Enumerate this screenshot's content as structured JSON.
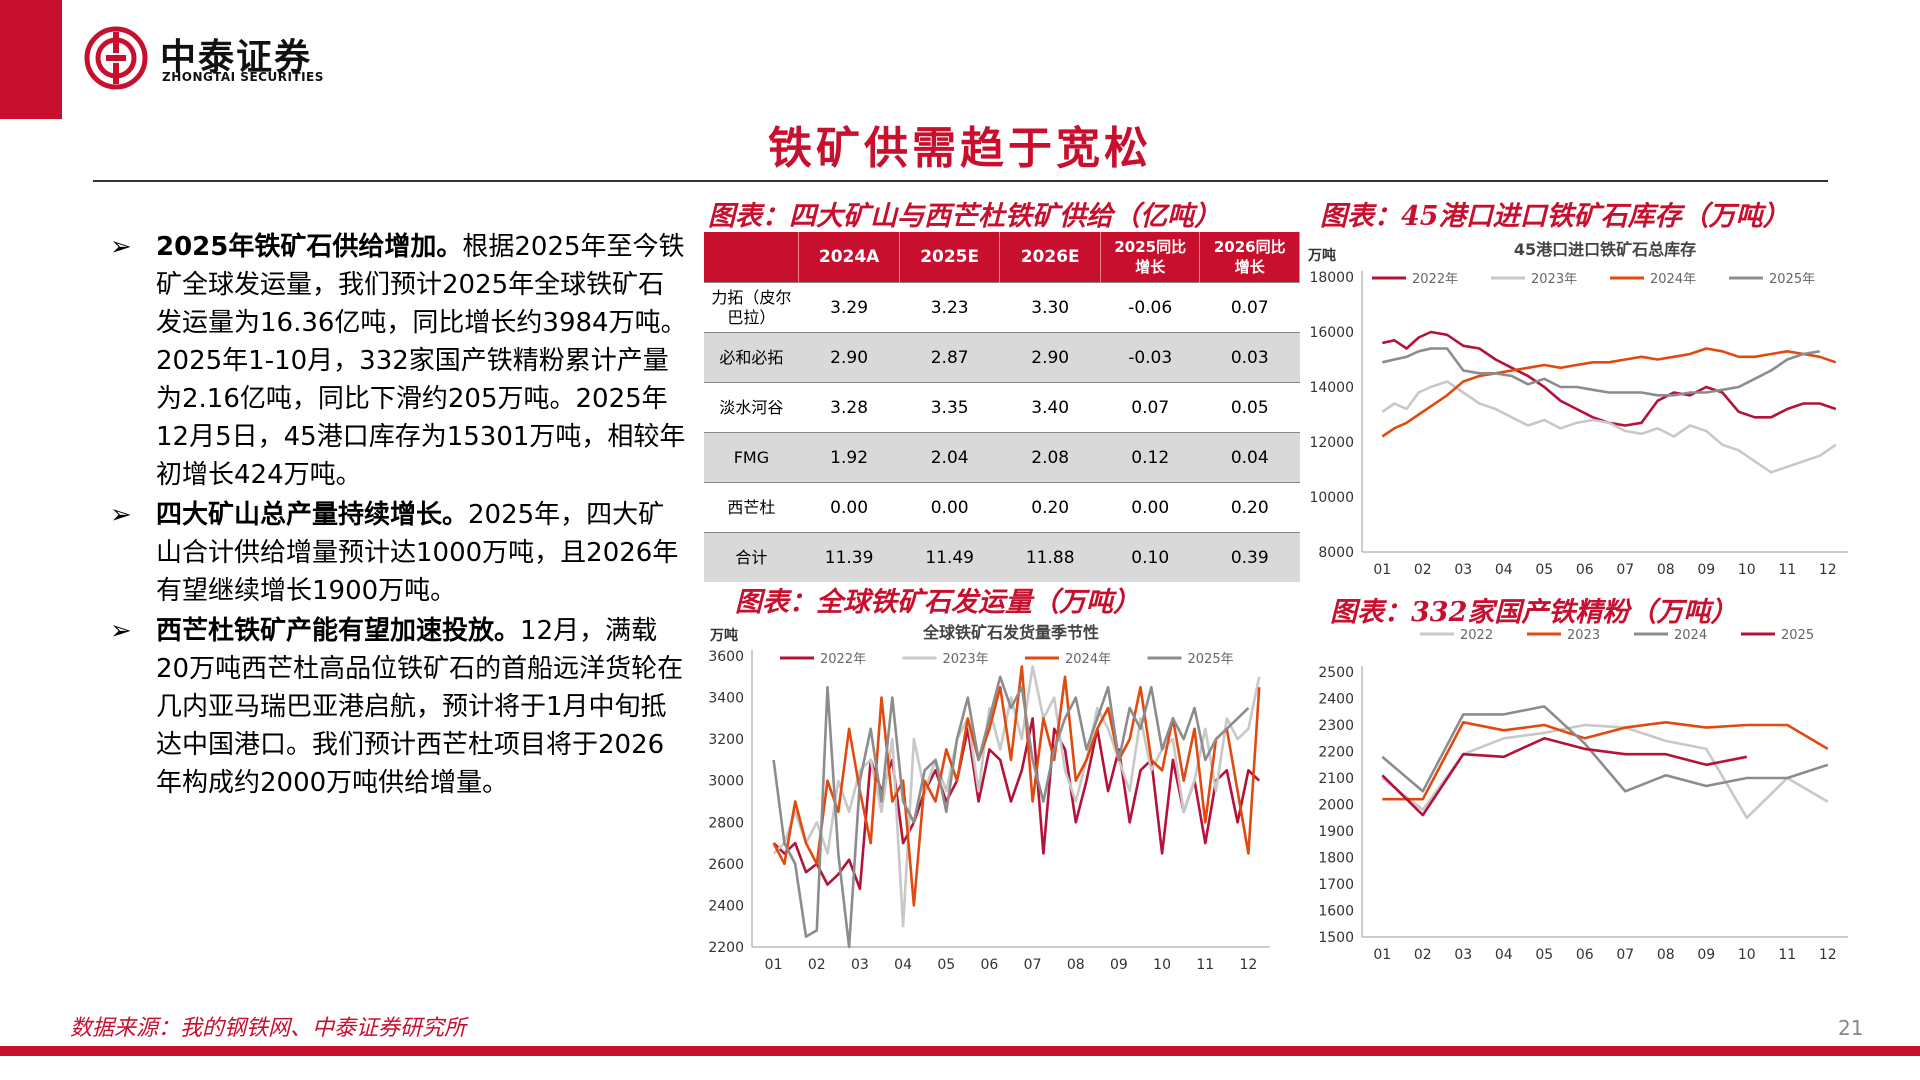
{
  "brand": {
    "name_cn": "中泰证券",
    "name_en": "ZHONGTAI SECURITIES"
  },
  "page_title": "铁矿供需趋于宽松",
  "bullets": [
    {
      "heading": "2025年铁矿石供给增加。",
      "text": "根据2025年至今铁矿全球发运量，我们预计2025年全球铁矿石发运量为16.36亿吨，同比增长约3984万吨。2025年1-10月，332家国产铁精粉累计产量为2.16亿吨，同比下滑约205万吨。2025年12月5日，45港口库存为15301万吨，相较年初增长424万吨。"
    },
    {
      "heading": "四大矿山总产量持续增长。",
      "text": "2025年，四大矿山合计供给增量预计达1000万吨，且2026年有望继续增长1900万吨。"
    },
    {
      "heading": "西芒杜铁矿产能有望加速投放。",
      "text": "12月，满载20万吨西芒杜高品位铁矿石的首船远洋货轮在几内亚马瑞巴亚港启航，预计将于1月中旬抵达中国港口。我们预计西芒杜项目将于2026年构成约2000万吨供给增量。"
    }
  ],
  "captions": {
    "table": "图表：四大矿山与西芒杜铁矿供给（亿吨）",
    "stock": "图表：45港口进口铁矿石库存（万吨）",
    "shipment": "图表：全球铁矿石发运量（万吨）",
    "domestic": "图表：332家国产铁精粉（万吨）"
  },
  "table": {
    "headers": [
      "",
      "2024A",
      "2025E",
      "2026E",
      "2025同比\n增长",
      "2026同比\n增长"
    ],
    "rows": [
      [
        "力拓（皮尔巴拉）",
        "3.29",
        "3.23",
        "3.30",
        "-0.06",
        "0.07"
      ],
      [
        "必和必拓",
        "2.90",
        "2.87",
        "2.90",
        "-0.03",
        "0.03"
      ],
      [
        "淡水河谷",
        "3.28",
        "3.35",
        "3.40",
        "0.07",
        "0.05"
      ],
      [
        "FMG",
        "1.92",
        "2.04",
        "2.08",
        "0.12",
        "0.04"
      ],
      [
        "西芒杜",
        "0.00",
        "0.00",
        "0.20",
        "0.00",
        "0.20"
      ],
      [
        "合计",
        "11.39",
        "11.49",
        "11.88",
        "0.10",
        "0.39"
      ]
    ]
  },
  "footer": {
    "source": "数据来源：我的钢铁网、中泰证券研究所",
    "page": "21"
  },
  "colors": {
    "accent": "#c8102e",
    "s2022": "#b5123a",
    "s2023": "#c8c8c8",
    "s2024": "#e04a10",
    "s2025": "#8c8c8c"
  },
  "chart_data": [
    {
      "type": "line",
      "title": "45港口进口铁矿石总库存",
      "ylabel": "万吨",
      "ylim": [
        8000,
        18000
      ],
      "yticks": [
        8000,
        10000,
        12000,
        14000,
        16000,
        18000
      ],
      "xticks": [
        "01",
        "02",
        "03",
        "04",
        "05",
        "06",
        "07",
        "08",
        "09",
        "10",
        "11",
        "12"
      ],
      "grid": false,
      "legend": "top",
      "series": [
        {
          "name": "2022年",
          "color": "#b5123a",
          "x": [
            1,
            1.3,
            1.6,
            1.9,
            2.2,
            2.6,
            3,
            3.4,
            3.8,
            4.2,
            4.6,
            5,
            5.4,
            5.8,
            6.2,
            6.6,
            7,
            7.4,
            7.8,
            8.2,
            8.6,
            9,
            9.4,
            9.8,
            10.2,
            10.6,
            11,
            11.4,
            11.8,
            12.2
          ],
          "values": [
            15600,
            15700,
            15400,
            15800,
            16000,
            15900,
            15500,
            15400,
            15000,
            14700,
            14400,
            14000,
            13500,
            13200,
            12900,
            12700,
            12600,
            12700,
            13500,
            13800,
            13700,
            14000,
            13800,
            13100,
            12900,
            12900,
            13200,
            13400,
            13400,
            13200
          ]
        },
        {
          "name": "2023年",
          "color": "#c8c8c8",
          "x": [
            1,
            1.3,
            1.6,
            1.9,
            2.2,
            2.6,
            3,
            3.4,
            3.8,
            4.2,
            4.6,
            5,
            5.4,
            5.8,
            6.2,
            6.6,
            7,
            7.4,
            7.8,
            8.2,
            8.6,
            9,
            9.4,
            9.8,
            10.2,
            10.6,
            11,
            11.4,
            11.8,
            12.2
          ],
          "values": [
            13100,
            13400,
            13200,
            13800,
            14000,
            14200,
            13800,
            13400,
            13200,
            12900,
            12600,
            12800,
            12500,
            12700,
            12800,
            12700,
            12400,
            12300,
            12500,
            12200,
            12600,
            12400,
            11900,
            11700,
            11300,
            10900,
            11100,
            11300,
            11500,
            11900
          ]
        },
        {
          "name": "2024年",
          "color": "#e04a10",
          "x": [
            1,
            1.3,
            1.6,
            1.9,
            2.2,
            2.6,
            3,
            3.4,
            3.8,
            4.2,
            4.6,
            5,
            5.4,
            5.8,
            6.2,
            6.6,
            7,
            7.4,
            7.8,
            8.2,
            8.6,
            9,
            9.4,
            9.8,
            10.2,
            10.6,
            11,
            11.4,
            11.8,
            12.2
          ],
          "values": [
            12200,
            12500,
            12700,
            13000,
            13300,
            13700,
            14200,
            14400,
            14500,
            14600,
            14700,
            14800,
            14700,
            14800,
            14900,
            14900,
            15000,
            15100,
            15000,
            15100,
            15200,
            15400,
            15300,
            15100,
            15100,
            15200,
            15300,
            15200,
            15100,
            14900
          ]
        },
        {
          "name": "2025年",
          "color": "#8c8c8c",
          "x": [
            1,
            1.3,
            1.6,
            1.9,
            2.2,
            2.6,
            3,
            3.4,
            3.8,
            4.2,
            4.6,
            5,
            5.4,
            5.8,
            6.2,
            6.6,
            7,
            7.4,
            7.8,
            8.2,
            8.6,
            9,
            9.4,
            9.8,
            10.2,
            10.6,
            11,
            11.4,
            11.8
          ],
          "values": [
            14900,
            15000,
            15100,
            15300,
            15400,
            15400,
            14600,
            14500,
            14500,
            14400,
            14100,
            14300,
            14000,
            14000,
            13900,
            13800,
            13800,
            13800,
            13700,
            13700,
            13800,
            13800,
            13900,
            14000,
            14300,
            14600,
            15000,
            15200,
            15300
          ]
        }
      ]
    },
    {
      "type": "line",
      "title": "全球铁矿石发货量季节性",
      "ylabel": "万吨",
      "ylim": [
        2200,
        3600
      ],
      "yticks": [
        2200,
        2400,
        2600,
        2800,
        3000,
        3200,
        3400,
        3600
      ],
      "xticks": [
        "01",
        "02",
        "03",
        "04",
        "05",
        "06",
        "07",
        "08",
        "09",
        "10",
        "11",
        "12"
      ],
      "grid": false,
      "legend": "top",
      "series": [
        {
          "name": "2022年",
          "color": "#b5123a",
          "x": [
            1,
            1.25,
            1.5,
            1.75,
            2,
            2.25,
            2.5,
            2.75,
            3,
            3.25,
            3.5,
            3.75,
            4,
            4.25,
            4.5,
            4.75,
            5,
            5.25,
            5.5,
            5.75,
            6,
            6.25,
            6.5,
            6.75,
            7,
            7.25,
            7.5,
            7.75,
            8,
            8.25,
            8.5,
            8.75,
            9,
            9.25,
            9.5,
            9.75,
            10,
            10.25,
            10.5,
            10.75,
            11,
            11.25,
            11.5,
            11.75,
            12,
            12.25
          ],
          "values": [
            2700,
            2650,
            2700,
            2560,
            2600,
            2500,
            2550,
            2620,
            2480,
            3100,
            2950,
            3100,
            2700,
            2800,
            2950,
            3050,
            2900,
            3000,
            3250,
            2900,
            3150,
            3100,
            2900,
            3050,
            3300,
            2650,
            3250,
            3150,
            2800,
            3000,
            3250,
            2950,
            3150,
            2800,
            3050,
            3100,
            2650,
            3100,
            2850,
            3000,
            2700,
            3000,
            3050,
            2800,
            3050,
            3000
          ]
        },
        {
          "name": "2023年",
          "color": "#c8c8c8",
          "x": [
            1,
            1.25,
            1.5,
            1.75,
            2,
            2.25,
            2.5,
            2.75,
            3,
            3.25,
            3.5,
            3.75,
            4,
            4.25,
            4.5,
            4.75,
            5,
            5.25,
            5.5,
            5.75,
            6,
            6.25,
            6.5,
            6.75,
            7,
            7.25,
            7.5,
            7.75,
            8,
            8.25,
            8.5,
            8.75,
            9,
            9.25,
            9.5,
            9.75,
            10,
            10.25,
            10.5,
            10.75,
            11,
            11.25,
            11.5,
            11.75,
            12,
            12.25
          ],
          "values": [
            2650,
            2700,
            2850,
            2700,
            2800,
            2650,
            3000,
            2850,
            3050,
            3100,
            2850,
            3200,
            2300,
            3200,
            2950,
            3100,
            2950,
            3200,
            3300,
            2950,
            3350,
            3150,
            3400,
            3200,
            3550,
            3300,
            3400,
            3050,
            2900,
            3100,
            3350,
            3250,
            3100,
            2950,
            3300,
            3050,
            3150,
            3200,
            2850,
            3000,
            3250,
            2950,
            3300,
            3200,
            3250,
            3500
          ]
        },
        {
          "name": "2024年",
          "color": "#e04a10",
          "x": [
            1,
            1.25,
            1.5,
            1.75,
            2,
            2.25,
            2.5,
            2.75,
            3,
            3.25,
            3.5,
            3.75,
            4,
            4.25,
            4.5,
            4.75,
            5,
            5.25,
            5.5,
            5.75,
            6,
            6.25,
            6.5,
            6.75,
            7,
            7.25,
            7.5,
            7.75,
            8,
            8.25,
            8.5,
            8.75,
            9,
            9.25,
            9.5,
            9.75,
            10,
            10.25,
            10.5,
            10.75,
            11,
            11.25,
            11.5,
            11.75,
            12,
            12.25
          ],
          "values": [
            2700,
            2600,
            2900,
            2700,
            2600,
            3000,
            2850,
            3250,
            2950,
            2700,
            3400,
            2900,
            3000,
            2400,
            3000,
            2900,
            3150,
            3000,
            3300,
            3100,
            3250,
            3450,
            3100,
            3550,
            2900,
            3300,
            3100,
            3500,
            3000,
            3100,
            3250,
            3350,
            3100,
            3200,
            3450,
            3100,
            3050,
            3300,
            3000,
            3250,
            2800,
            3200,
            3250,
            2950,
            2650,
            3450
          ]
        },
        {
          "name": "2025年",
          "color": "#8c8c8c",
          "x": [
            1,
            1.25,
            1.5,
            1.75,
            2,
            2.25,
            2.5,
            2.75,
            3,
            3.25,
            3.5,
            3.75,
            4,
            4.25,
            4.5,
            4.75,
            5,
            5.25,
            5.5,
            5.75,
            6,
            6.25,
            6.5,
            6.75,
            7,
            7.25,
            7.5,
            7.75,
            8,
            8.25,
            8.5,
            8.75,
            9,
            9.25,
            9.5,
            9.75,
            10,
            10.25,
            10.5,
            10.75,
            11,
            11.25,
            11.5,
            11.75,
            12
          ],
          "values": [
            3100,
            2700,
            2600,
            2250,
            2280,
            3450,
            2650,
            2200,
            3000,
            3250,
            2900,
            3400,
            2900,
            2800,
            3050,
            3100,
            2850,
            3200,
            3400,
            3100,
            3300,
            3500,
            3350,
            3450,
            3100,
            2900,
            3150,
            3300,
            3400,
            3150,
            3300,
            3450,
            3100,
            3350,
            3250,
            3450,
            3150,
            3300,
            3200,
            3350,
            3100,
            3200,
            3250,
            3300,
            3350
          ]
        }
      ]
    },
    {
      "type": "line",
      "title": "",
      "ylabel": "",
      "ylim": [
        1500,
        2500
      ],
      "yticks": [
        1500,
        1600,
        1700,
        1800,
        1900,
        2000,
        2100,
        2200,
        2300,
        2400,
        2500
      ],
      "xticks": [
        "01",
        "02",
        "03",
        "04",
        "05",
        "06",
        "07",
        "08",
        "09",
        "10",
        "11",
        "12"
      ],
      "grid": false,
      "legend": "top",
      "series": [
        {
          "name": "2022",
          "color": "#c8c8c8",
          "x": [
            1,
            2,
            3,
            4,
            5,
            6,
            7,
            8,
            9,
            10,
            11,
            12
          ],
          "values": [
            2100,
            1980,
            2190,
            2250,
            2270,
            2300,
            2290,
            2240,
            2210,
            1950,
            2100,
            2010
          ]
        },
        {
          "name": "2023",
          "color": "#e04a10",
          "x": [
            1,
            2,
            3,
            4,
            5,
            6,
            7,
            8,
            9,
            10,
            11,
            12
          ],
          "values": [
            2020,
            2020,
            2310,
            2280,
            2300,
            2250,
            2290,
            2310,
            2290,
            2300,
            2300,
            2210
          ]
        },
        {
          "name": "2024",
          "color": "#8c8c8c",
          "x": [
            1,
            2,
            3,
            4,
            5,
            6,
            7,
            8,
            9,
            10,
            11,
            12
          ],
          "values": [
            2180,
            2050,
            2340,
            2340,
            2370,
            2230,
            2050,
            2110,
            2070,
            2100,
            2100,
            2150
          ]
        },
        {
          "name": "2025",
          "color": "#b5123a",
          "x": [
            1,
            2,
            3,
            4,
            5,
            6,
            7,
            8,
            9,
            10
          ],
          "values": [
            2110,
            1960,
            2190,
            2180,
            2250,
            2210,
            2190,
            2190,
            2150,
            2180
          ]
        }
      ]
    }
  ]
}
